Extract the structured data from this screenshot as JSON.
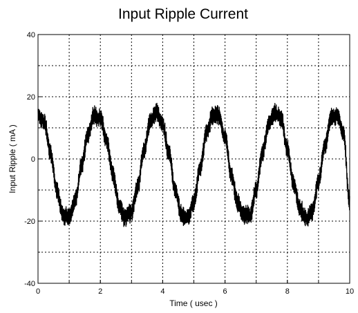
{
  "chart_data": {
    "type": "line",
    "title": "Input Ripple Current",
    "xlabel": "Time ( usec )",
    "ylabel": "Input Ripple ( mA )",
    "xlim": [
      0,
      10
    ],
    "ylim": [
      -40,
      40
    ],
    "xticks": [
      0,
      2,
      4,
      6,
      8,
      10
    ],
    "yticks": [
      -40,
      -20,
      0,
      20,
      40
    ],
    "xticklabels": [
      "0",
      "2",
      "4",
      "6",
      "8",
      "10"
    ],
    "yticklabels": [
      "-40",
      "-20",
      "0",
      "20",
      "40"
    ],
    "grid": true,
    "grid_style": "dotted",
    "line_color": "#000000",
    "series": [
      {
        "x": [
          0.0,
          0.2,
          0.4,
          0.6,
          0.8,
          1.0,
          1.2,
          1.4,
          1.6,
          1.8,
          2.0,
          2.2,
          2.4,
          2.6,
          2.8,
          3.0,
          3.2,
          3.4,
          3.6,
          3.8,
          4.0,
          4.2,
          4.4,
          4.6,
          4.8,
          5.0,
          5.2,
          5.4,
          5.6,
          5.8,
          6.0,
          6.2,
          6.4,
          6.6,
          6.8,
          7.0,
          7.2,
          7.4,
          7.6,
          7.8,
          8.0,
          8.2,
          8.4,
          8.6,
          8.8,
          9.0,
          9.2,
          9.4,
          9.6,
          9.8,
          10.0
        ],
        "y": [
          14,
          12,
          2,
          -10,
          -18,
          -19,
          -13,
          -2,
          8,
          14,
          13,
          6,
          -5,
          -15,
          -19,
          -17,
          -9,
          3,
          12,
          15,
          11,
          2,
          -10,
          -18,
          -19,
          -14,
          -3,
          8,
          14,
          14,
          7,
          -5,
          -14,
          -18,
          -18,
          -10,
          2,
          11,
          15,
          13,
          3,
          -8,
          -16,
          -19,
          -17,
          -7,
          4,
          13,
          14,
          8,
          -14
        ]
      }
    ]
  }
}
